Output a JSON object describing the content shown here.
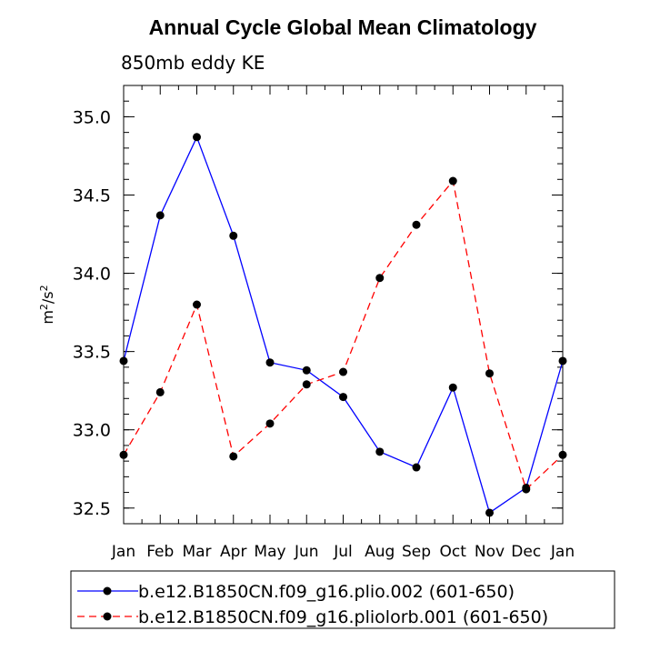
{
  "chart_data": {
    "type": "line",
    "title": "Annual Cycle Global Mean Climatology",
    "subtitle": "850mb eddy KE",
    "ylabel_base": "m",
    "ylabel_exp1": "2",
    "ylabel_mid": "/s",
    "ylabel_exp2": "2",
    "xlabel": "",
    "categories": [
      "Jan",
      "Feb",
      "Mar",
      "Apr",
      "May",
      "Jun",
      "Jul",
      "Aug",
      "Sep",
      "Oct",
      "Nov",
      "Dec",
      "Jan"
    ],
    "ylim": [
      32.4,
      35.2
    ],
    "yticks": [
      32.5,
      33.0,
      33.5,
      34.0,
      34.5,
      35.0
    ],
    "ytick_labels": [
      "32.5",
      "33.0",
      "33.5",
      "34.0",
      "34.5",
      "35.0"
    ],
    "series": [
      {
        "name": "b.e12.B1850CN.f09_g16.plio.002 (601-650)",
        "color": "#0000ff",
        "dash": "solid",
        "values": [
          33.44,
          34.37,
          34.87,
          34.24,
          33.43,
          33.38,
          33.21,
          32.86,
          32.76,
          33.27,
          32.47,
          32.63,
          33.44
        ]
      },
      {
        "name": "b.e12.B1850CN.f09_g16.pliolorb.001 (601-650)",
        "color": "#ff0000",
        "dash": "dashed",
        "values": [
          32.84,
          33.24,
          33.8,
          32.83,
          33.04,
          33.29,
          33.37,
          33.97,
          34.31,
          34.59,
          33.36,
          32.62,
          32.84
        ]
      }
    ],
    "legend_position": "bottom"
  }
}
